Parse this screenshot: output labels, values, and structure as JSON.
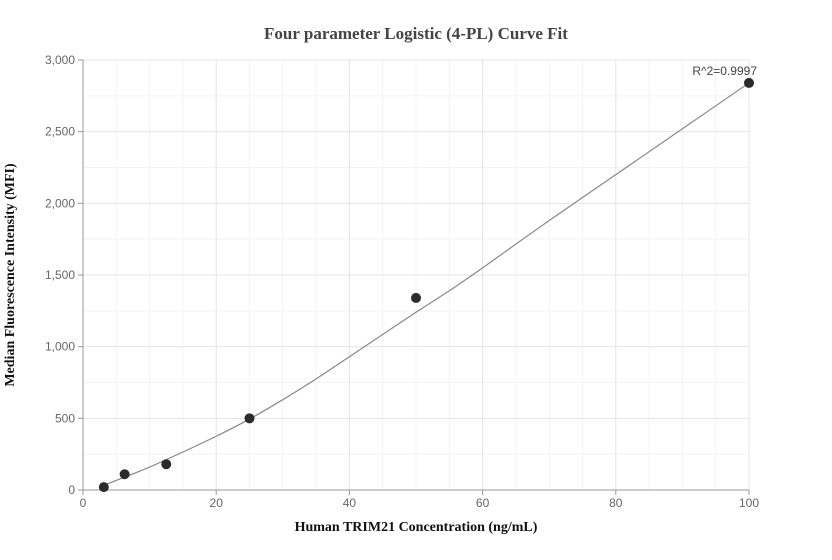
{
  "chart_data": {
    "type": "scatter",
    "title": "Four parameter Logistic (4-PL) Curve Fit",
    "xlabel": "Human TRIM21 Concentration (ng/mL)",
    "ylabel": "Median Fluorescence Intensity (MFI)",
    "xlim": [
      0,
      100
    ],
    "ylim": [
      0,
      3000
    ],
    "x_ticks": [
      0,
      20,
      40,
      60,
      80,
      100
    ],
    "x_tick_labels": [
      "0",
      "20",
      "40",
      "60",
      "80",
      "100"
    ],
    "y_ticks": [
      0,
      500,
      1000,
      1500,
      2000,
      2500,
      3000
    ],
    "y_tick_labels": [
      "0",
      "500",
      "1,000",
      "1,500",
      "2,000",
      "2,500",
      "3,000"
    ],
    "grid": true,
    "points": [
      {
        "x": 3.125,
        "y": 20
      },
      {
        "x": 6.25,
        "y": 110
      },
      {
        "x": 12.5,
        "y": 180
      },
      {
        "x": 25,
        "y": 500
      },
      {
        "x": 50,
        "y": 1340
      },
      {
        "x": 100,
        "y": 2840
      }
    ],
    "fit_curve": {
      "model": "4-PL",
      "samples": [
        {
          "x": 3,
          "y": 30
        },
        {
          "x": 6,
          "y": 85
        },
        {
          "x": 10,
          "y": 160
        },
        {
          "x": 15,
          "y": 265
        },
        {
          "x": 20,
          "y": 375
        },
        {
          "x": 25,
          "y": 495
        },
        {
          "x": 30,
          "y": 630
        },
        {
          "x": 35,
          "y": 775
        },
        {
          "x": 40,
          "y": 930
        },
        {
          "x": 45,
          "y": 1085
        },
        {
          "x": 50,
          "y": 1240
        },
        {
          "x": 55,
          "y": 1390
        },
        {
          "x": 60,
          "y": 1550
        },
        {
          "x": 70,
          "y": 1880
        },
        {
          "x": 80,
          "y": 2200
        },
        {
          "x": 90,
          "y": 2520
        },
        {
          "x": 100,
          "y": 2840
        }
      ]
    },
    "annotation": {
      "text": "R^2=0.9997",
      "x": 100,
      "y": 2840
    }
  }
}
